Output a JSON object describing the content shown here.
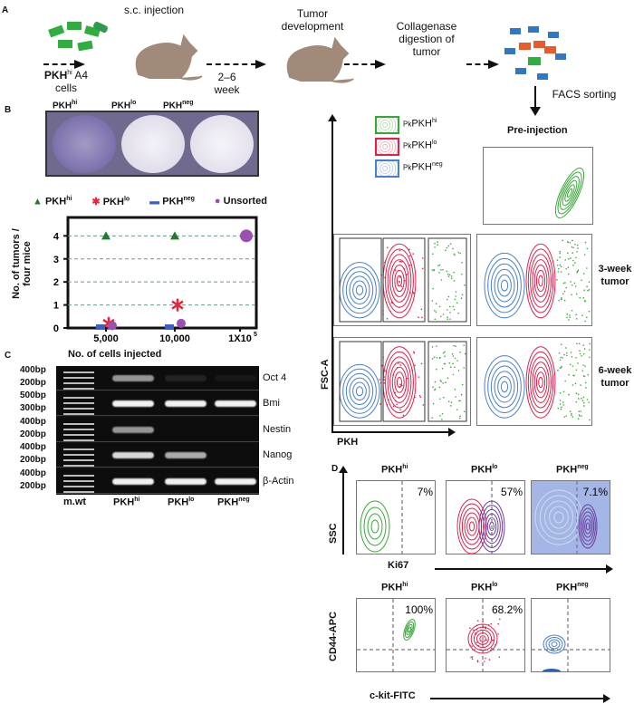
{
  "panels": {
    "a": "A",
    "b": "B",
    "c": "C",
    "d": "D"
  },
  "schematic": {
    "injection": "s.c. injection",
    "cells_pre": "PKH",
    "cells_sup": "hi",
    "cells_post": " A4",
    "cells_line2": "cells",
    "duration": "2–6",
    "duration_unit": "week",
    "tumor": "Tumor",
    "tumor2": "development",
    "digest1": "Collagenase",
    "digest2": "digestion of",
    "digest3": "tumor",
    "facs": "FACS sorting"
  },
  "wells": {
    "labels": [
      {
        "base": "PKH",
        "sup": "hi"
      },
      {
        "base": "PKH",
        "sup": "lo"
      },
      {
        "base": "PKH",
        "sup": "neg"
      }
    ]
  },
  "chart_data": {
    "type": "scatter",
    "ylabel": "No. of tumors / four mice",
    "ylabel1": "No. of tumors /",
    "ylabel2": "four mice",
    "xlabel": "No. of cells injected",
    "categories": [
      "5,000",
      "10,000",
      "1X10^5"
    ],
    "cat_labels": [
      "5,000",
      "10,000",
      "1X10"
    ],
    "yticks": [
      "0",
      "1",
      "2",
      "3",
      "4"
    ],
    "ylim": [
      0,
      4.8
    ],
    "grid": "horizontal dashed",
    "legend_position": "top",
    "series": [
      {
        "name": "PKH",
        "sup": "hi",
        "marker": "triangle",
        "color": "#1f7a2e",
        "values": [
          4,
          4,
          null
        ]
      },
      {
        "name": "PKH",
        "sup": "lo",
        "marker": "star",
        "color": "#e8253a",
        "values": [
          0.2,
          1,
          null
        ]
      },
      {
        "name": "PKH",
        "sup": "neg",
        "marker": "square",
        "color": "#3b5fc4",
        "values": [
          0,
          0,
          null
        ]
      },
      {
        "name": "Unsorted",
        "sup": "",
        "marker": "circle",
        "color": "#9b4fb0",
        "values": [
          0.1,
          0.2,
          4
        ]
      }
    ]
  },
  "gel": {
    "rows": [
      {
        "gene": "Oct 4",
        "bp_top": "400bp",
        "bp_bot": "200bp",
        "bands": [
          0.6,
          0.1,
          0.05
        ]
      },
      {
        "gene": "Bmi",
        "bp_top": "500bp",
        "bp_bot": "300bp",
        "bands": [
          1,
          1,
          1
        ]
      },
      {
        "gene": "Nestin",
        "bp_top": "400bp",
        "bp_bot": "200bp",
        "bands": [
          0.6,
          0,
          0
        ]
      },
      {
        "gene": "Nanog",
        "bp_top": "400bp",
        "bp_bot": "200bp",
        "bands": [
          0.9,
          0.7,
          0
        ]
      },
      {
        "gene": "β-Actin",
        "bp_top": "400bp",
        "bp_bot": "200bp",
        "bands": [
          1,
          1,
          1
        ]
      }
    ],
    "lanes": [
      {
        "base": "m.wt",
        "sup": ""
      },
      {
        "base": "PKH",
        "sup": "hi"
      },
      {
        "base": "PKH",
        "sup": "lo"
      },
      {
        "base": "PKH",
        "sup": "neg"
      }
    ]
  },
  "facs": {
    "yaxis": "FSC-A",
    "xaxis": "PKH",
    "legend": [
      {
        "pre": "Pk",
        "base": "PKH",
        "sup": "hi",
        "color": "#3aa63a"
      },
      {
        "pre": "Pk",
        "base": "PKH",
        "sup": "lo",
        "color": "#e0224a"
      },
      {
        "pre": "Pk",
        "base": "PKH",
        "sup": "neg",
        "color": "#4a7fd0"
      }
    ],
    "pre_injection": "Pre-injection",
    "week3": "3-week",
    "week6": "6-week",
    "tumor": "tumor",
    "colors": {
      "hi": "#3aa63a",
      "lo": "#e0224a",
      "neg": "#4a7fd0",
      "ki67": "#6a3fa0"
    }
  },
  "d": {
    "ki67": {
      "ylabel": "SSC",
      "xlabel": "Ki67",
      "plots": [
        {
          "base": "PKH",
          "sup": "hi",
          "pct": "7%"
        },
        {
          "base": "PKH",
          "sup": "lo",
          "pct": "57%"
        },
        {
          "base": "PKH",
          "sup": "neg",
          "pct": "7.1%"
        }
      ]
    },
    "cd44": {
      "ylabel": "CD44-APC",
      "xlabel": "c-kit-FITC",
      "plots": [
        {
          "base": "PKH",
          "sup": "hi",
          "pct": "100%"
        },
        {
          "base": "PKH",
          "sup": "lo",
          "pct": "68.2%"
        },
        {
          "base": "PKH",
          "sup": "neg",
          "pct": ""
        }
      ]
    }
  }
}
